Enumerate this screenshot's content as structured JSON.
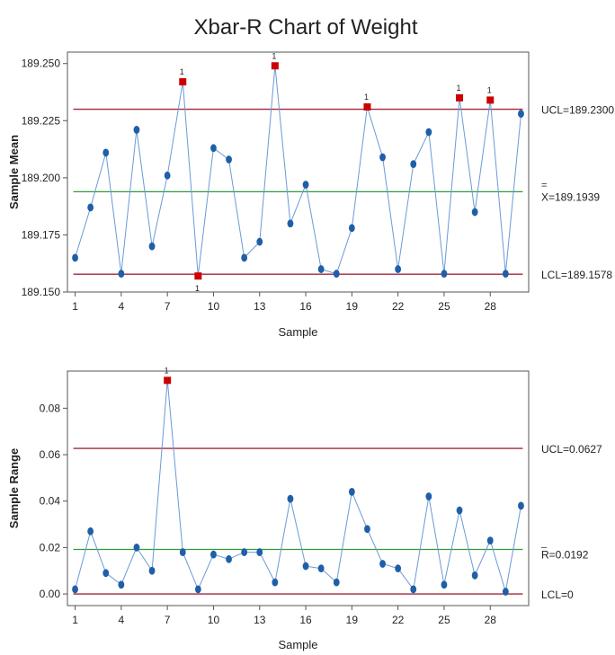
{
  "title": "Xbar-R Chart of Weight",
  "colors": {
    "series": "#1f5fa8",
    "series_line": "#6a9ad6",
    "out_of_control": "#cc0000",
    "control_limit": "#a0283c",
    "center_line": "#2e9a3a",
    "frame": "#555555"
  },
  "chart_data": [
    {
      "type": "line",
      "xlabel": "Sample",
      "ylabel": "Sample Mean",
      "xlim": [
        0.5,
        30.5
      ],
      "ylim": [
        189.15,
        189.255
      ],
      "xticks": [
        1,
        4,
        7,
        10,
        13,
        16,
        19,
        22,
        25,
        28
      ],
      "yticks": [
        189.15,
        189.175,
        189.2,
        189.225,
        189.25
      ],
      "ytick_labels": [
        "189.150",
        "189.175",
        "189.200",
        "189.225",
        "189.250"
      ],
      "x": [
        1,
        2,
        3,
        4,
        5,
        6,
        7,
        8,
        9,
        10,
        11,
        12,
        13,
        14,
        15,
        16,
        17,
        18,
        19,
        20,
        21,
        22,
        23,
        24,
        25,
        26,
        27,
        28,
        29,
        30
      ],
      "values": [
        189.165,
        189.187,
        189.211,
        189.158,
        189.221,
        189.17,
        189.201,
        189.242,
        189.157,
        189.213,
        189.208,
        189.165,
        189.172,
        189.249,
        189.18,
        189.197,
        189.16,
        189.158,
        189.178,
        189.231,
        189.209,
        189.16,
        189.206,
        189.22,
        189.158,
        189.235,
        189.185,
        189.234,
        189.158,
        189.228
      ],
      "flagged": [
        8,
        9,
        14,
        20,
        26,
        28
      ],
      "flag_label": "1",
      "reference_lines": [
        {
          "kind": "ucl",
          "value": 189.23,
          "label": "UCL=189.2300"
        },
        {
          "kind": "center",
          "value": 189.1939,
          "label": "X=189.1939",
          "overbar": "="
        },
        {
          "kind": "lcl",
          "value": 189.1578,
          "label": "LCL=189.1578"
        }
      ]
    },
    {
      "type": "line",
      "xlabel": "Sample",
      "ylabel": "Sample Range",
      "xlim": [
        0.5,
        30.5
      ],
      "ylim": [
        -0.005,
        0.096
      ],
      "xticks": [
        1,
        4,
        7,
        10,
        13,
        16,
        19,
        22,
        25,
        28
      ],
      "yticks": [
        0,
        0.02,
        0.04,
        0.06,
        0.08
      ],
      "ytick_labels": [
        "0.00",
        "0.02",
        "0.04",
        "0.06",
        "0.08"
      ],
      "x": [
        1,
        2,
        3,
        4,
        5,
        6,
        7,
        8,
        9,
        10,
        11,
        12,
        13,
        14,
        15,
        16,
        17,
        18,
        19,
        20,
        21,
        22,
        23,
        24,
        25,
        26,
        27,
        28,
        29,
        30
      ],
      "values": [
        0.002,
        0.027,
        0.009,
        0.004,
        0.02,
        0.01,
        0.092,
        0.018,
        0.002,
        0.017,
        0.015,
        0.018,
        0.018,
        0.005,
        0.041,
        0.012,
        0.011,
        0.005,
        0.044,
        0.028,
        0.013,
        0.011,
        0.002,
        0.042,
        0.004,
        0.036,
        0.008,
        0.023,
        0.001,
        0.038
      ],
      "flagged": [
        7
      ],
      "flag_label": "1",
      "reference_lines": [
        {
          "kind": "ucl",
          "value": 0.0627,
          "label": "UCL=0.0627"
        },
        {
          "kind": "center",
          "value": 0.0192,
          "label": "R=0.0192",
          "overbar": "_"
        },
        {
          "kind": "lcl",
          "value": 0,
          "label": "LCL=0"
        }
      ]
    }
  ]
}
